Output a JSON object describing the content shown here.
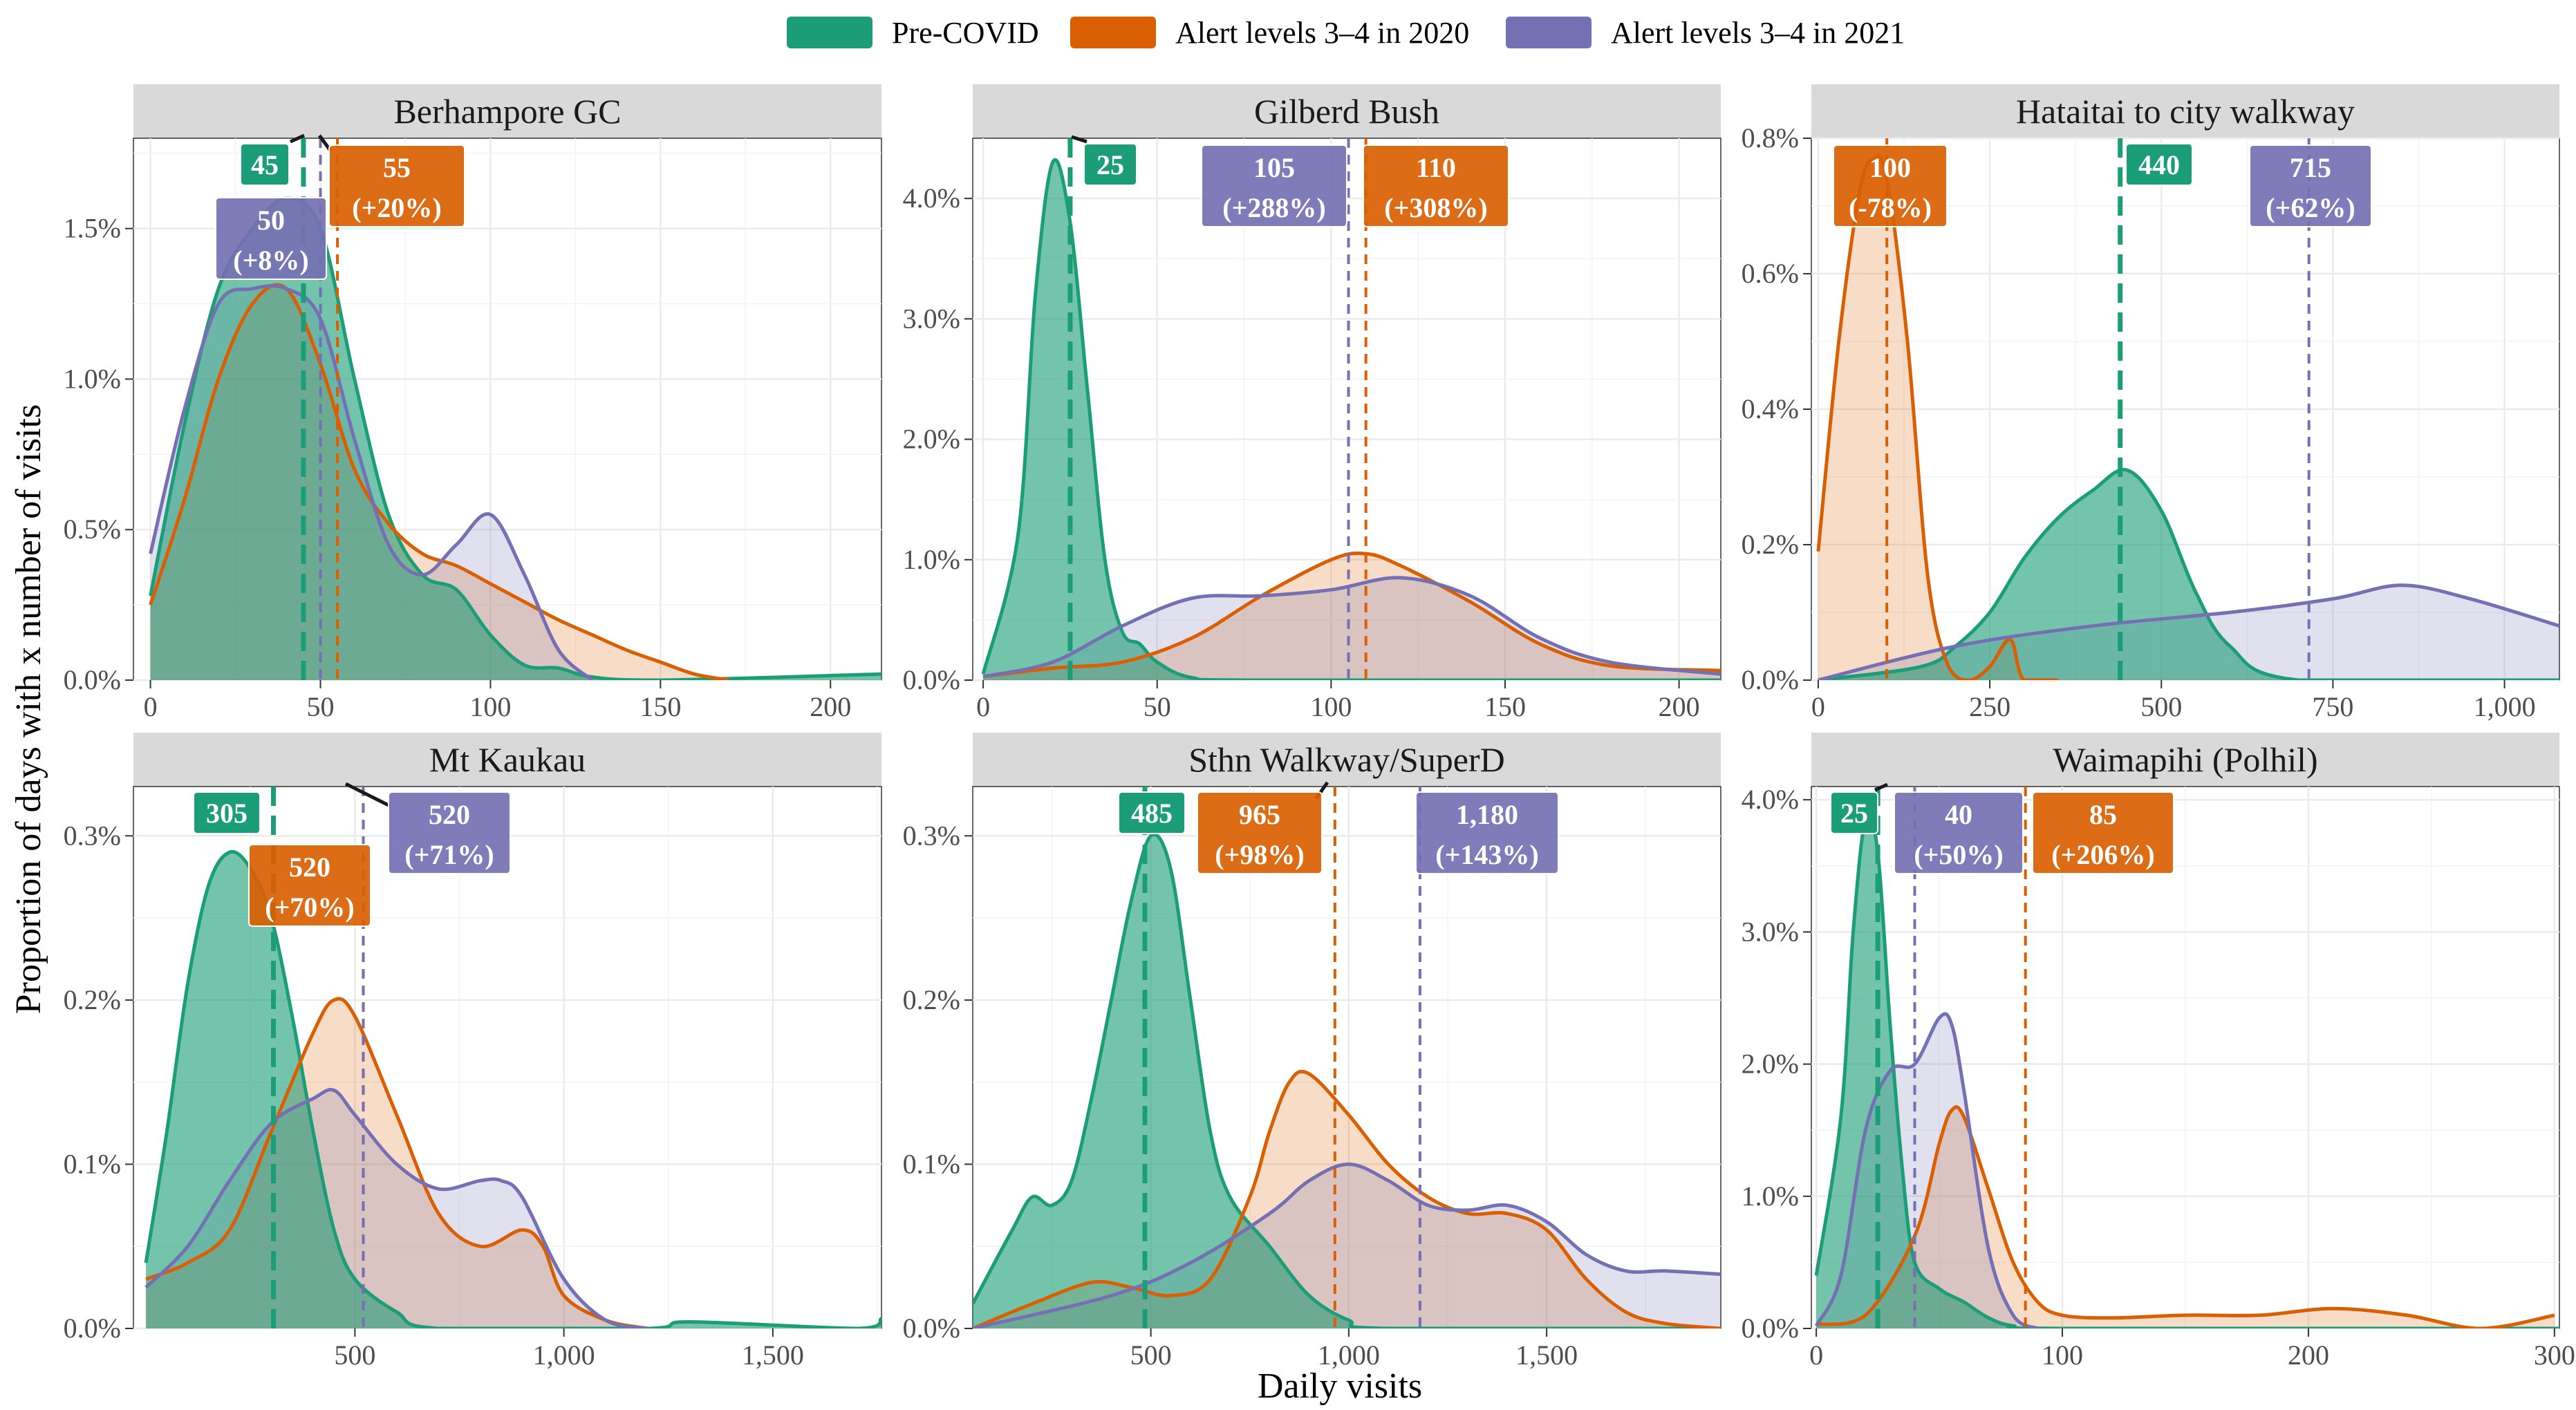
{
  "chart_data": {
    "type": "area",
    "xlabel": "Daily visits",
    "ylabel": "Proportion of days with x number of visits",
    "legend": {
      "placement": "top-center",
      "entries": [
        {
          "name": "Pre-COVID",
          "color": "#1b9e77"
        },
        {
          "name": "Alert levels 3–4 in 2020",
          "color": "#d95f02"
        },
        {
          "name": "Alert levels 3–4 in 2021",
          "color": "#7570b3"
        }
      ]
    },
    "panels": [
      {
        "title": "Berhampore GC",
        "xlim": [
          -5,
          215
        ],
        "ylim": [
          0,
          1.8
        ],
        "xticks": [
          0,
          50,
          100,
          150,
          200
        ],
        "xtick_labels": [
          "0",
          "50",
          "100",
          "150",
          "200"
        ],
        "yticks": [
          0,
          0.5,
          1.0,
          1.5
        ],
        "ytick_labels": [
          "0.0%",
          "0.5%",
          "1.0%",
          "1.5%"
        ],
        "series": [
          {
            "name": "Pre-COVID",
            "x": [
              0,
              10,
              20,
              30,
              40,
              50,
              60,
              70,
              80,
              90,
              100,
              110,
              120,
              130,
              150,
              215
            ],
            "y": [
              0.28,
              0.85,
              1.3,
              1.5,
              1.6,
              1.5,
              1.0,
              0.55,
              0.35,
              0.3,
              0.15,
              0.05,
              0.04,
              0.01,
              0.0,
              0.02
            ]
          },
          {
            "name": "Alert levels 3–4 in 2020",
            "x": [
              0,
              10,
              20,
              30,
              40,
              50,
              60,
              70,
              80,
              90,
              100,
              110,
              120,
              130,
              140,
              150,
              160,
              170
            ],
            "y": [
              0.25,
              0.6,
              1.0,
              1.25,
              1.3,
              1.05,
              0.7,
              0.52,
              0.42,
              0.38,
              0.32,
              0.26,
              0.2,
              0.15,
              0.1,
              0.06,
              0.02,
              0.0
            ]
          },
          {
            "name": "Alert levels 3–4 in 2021",
            "x": [
              0,
              10,
              20,
              30,
              40,
              50,
              60,
              70,
              80,
              90,
              100,
              110,
              120,
              130
            ],
            "y": [
              0.42,
              0.9,
              1.25,
              1.3,
              1.3,
              1.2,
              0.8,
              0.45,
              0.35,
              0.45,
              0.55,
              0.35,
              0.1,
              0.0
            ]
          }
        ],
        "annotations": [
          {
            "series": "Pre-COVID",
            "x": 45,
            "label": "45",
            "change": ""
          },
          {
            "series": "Alert levels 3–4 in 2021",
            "x": 50,
            "label": "50",
            "change": "(+8%)"
          },
          {
            "series": "Alert levels 3–4 in 2020",
            "x": 55,
            "label": "55",
            "change": "(+20%)"
          }
        ]
      },
      {
        "title": "Gilberd Bush",
        "xlim": [
          -3,
          212
        ],
        "ylim": [
          0,
          4.5
        ],
        "xticks": [
          0,
          50,
          100,
          150,
          200
        ],
        "xtick_labels": [
          "0",
          "50",
          "100",
          "150",
          "200"
        ],
        "yticks": [
          0,
          1.0,
          2.0,
          3.0,
          4.0
        ],
        "ytick_labels": [
          "0.0%",
          "1.0%",
          "2.0%",
          "3.0%",
          "4.0%"
        ],
        "series": [
          {
            "name": "Pre-COVID",
            "x": [
              0,
              10,
              15,
              20,
              25,
              30,
              35,
              40,
              45,
              50,
              60,
              80,
              212
            ],
            "y": [
              0.05,
              1.2,
              3.2,
              4.3,
              3.8,
              2.4,
              1.0,
              0.4,
              0.3,
              0.15,
              0.02,
              0.0,
              0.0
            ]
          },
          {
            "name": "Alert levels 3–4 in 2020",
            "x": [
              0,
              20,
              40,
              60,
              80,
              100,
              110,
              120,
              140,
              160,
              180,
              212
            ],
            "y": [
              0.03,
              0.1,
              0.15,
              0.35,
              0.7,
              1.0,
              1.05,
              0.95,
              0.65,
              0.3,
              0.12,
              0.08
            ]
          },
          {
            "name": "Alert levels 3–4 in 2021",
            "x": [
              0,
              20,
              40,
              60,
              80,
              100,
              120,
              140,
              160,
              180,
              212
            ],
            "y": [
              0.03,
              0.15,
              0.45,
              0.68,
              0.7,
              0.75,
              0.85,
              0.7,
              0.35,
              0.15,
              0.05
            ]
          }
        ],
        "annotations": [
          {
            "series": "Pre-COVID",
            "x": 25,
            "label": "25",
            "change": ""
          },
          {
            "series": "Alert levels 3–4 in 2021",
            "x": 105,
            "label": "105",
            "change": "(+288%)"
          },
          {
            "series": "Alert levels 3–4 in 2020",
            "x": 110,
            "label": "110",
            "change": "(+308%)"
          }
        ]
      },
      {
        "title": "Hataitai to city walkway",
        "xlim": [
          -10,
          1080
        ],
        "ylim": [
          0,
          0.8
        ],
        "xticks": [
          0,
          250,
          500,
          750,
          1000
        ],
        "xtick_labels": [
          "0",
          "250",
          "500",
          "750",
          "1,000"
        ],
        "yticks": [
          0,
          0.2,
          0.4,
          0.6,
          0.8
        ],
        "ytick_labels": [
          "0.0%",
          "0.2%",
          "0.4%",
          "0.6%",
          "0.8%"
        ],
        "series": [
          {
            "name": "Pre-COVID",
            "x": [
              0,
              150,
              200,
              250,
              300,
              350,
              400,
              450,
              500,
              550,
              600,
              700,
              1080
            ],
            "y": [
              0.0,
              0.02,
              0.05,
              0.1,
              0.18,
              0.24,
              0.28,
              0.31,
              0.25,
              0.13,
              0.05,
              0.0,
              0.0
            ]
          },
          {
            "name": "Alert levels 3–4 in 2020",
            "x": [
              0,
              30,
              60,
              80,
              100,
              130,
              160,
              190,
              220,
              250,
              280,
              300,
              350
            ],
            "y": [
              0.19,
              0.5,
              0.72,
              0.77,
              0.74,
              0.5,
              0.15,
              0.02,
              0.0,
              0.02,
              0.06,
              0.0,
              0.0
            ]
          },
          {
            "name": "Alert levels 3–4 in 2021",
            "x": [
              0,
              200,
              400,
              600,
              750,
              850,
              950,
              1080
            ],
            "y": [
              0.0,
              0.05,
              0.08,
              0.1,
              0.12,
              0.14,
              0.12,
              0.08
            ]
          }
        ],
        "annotations": [
          {
            "series": "Alert levels 3–4 in 2020",
            "x": 100,
            "label": "100",
            "change": "(-78%)"
          },
          {
            "series": "Pre-COVID",
            "x": 440,
            "label": "440",
            "change": ""
          },
          {
            "series": "Alert levels 3–4 in 2021",
            "x": 715,
            "label": "715",
            "change": "(+62%)"
          }
        ]
      },
      {
        "title": "Mt Kaukau",
        "xlim": [
          -30,
          1760
        ],
        "ylim": [
          0,
          0.33
        ],
        "xticks": [
          500,
          1000,
          1500
        ],
        "xtick_labels": [
          "500",
          "1,000",
          "1,500"
        ],
        "yticks": [
          0,
          0.1,
          0.2,
          0.3
        ],
        "ytick_labels": [
          "0.0%",
          "0.1%",
          "0.2%",
          "0.3%"
        ],
        "series": [
          {
            "name": "Pre-COVID",
            "x": [
              0,
              50,
              100,
              150,
              200,
              250,
              300,
              350,
              400,
              450,
              500,
              600,
              700,
              1200,
              1300,
              1700,
              1760
            ],
            "y": [
              0.04,
              0.12,
              0.21,
              0.27,
              0.29,
              0.28,
              0.25,
              0.19,
              0.12,
              0.06,
              0.03,
              0.01,
              0.0,
              0.0,
              0.004,
              0.0,
              0.006
            ]
          },
          {
            "name": "Alert levels 3–4 in 2020",
            "x": [
              0,
              100,
              200,
              300,
              400,
              450,
              500,
              600,
              700,
              800,
              900,
              950,
              1000,
              1100,
              1200
            ],
            "y": [
              0.03,
              0.04,
              0.06,
              0.12,
              0.18,
              0.2,
              0.19,
              0.13,
              0.07,
              0.05,
              0.06,
              0.05,
              0.02,
              0.005,
              0.0
            ]
          },
          {
            "name": "Alert levels 3–4 in 2021",
            "x": [
              0,
              100,
              200,
              300,
              400,
              450,
              500,
              600,
              700,
              800,
              850,
              900,
              1000,
              1100,
              1200
            ],
            "y": [
              0.025,
              0.05,
              0.09,
              0.125,
              0.14,
              0.145,
              0.13,
              0.1,
              0.085,
              0.09,
              0.09,
              0.08,
              0.03,
              0.005,
              0.0
            ]
          }
        ],
        "annotations": [
          {
            "series": "Pre-COVID",
            "x": 305,
            "label": "305",
            "change": ""
          },
          {
            "series": "Alert levels 3–4 in 2020",
            "x": 520,
            "label": "520",
            "change": "(+70%)"
          },
          {
            "series": "Alert levels 3–4 in 2021",
            "x": 520,
            "label": "520",
            "change": "(+71%)"
          }
        ]
      },
      {
        "title": "Sthn Walkway/SuperD",
        "xlim": [
          50,
          1940
        ],
        "ylim": [
          0,
          0.33
        ],
        "xticks": [
          500,
          1000,
          1500
        ],
        "xtick_labels": [
          "500",
          "1,000",
          "1,500"
        ],
        "yticks": [
          0,
          0.1,
          0.2,
          0.3
        ],
        "ytick_labels": [
          "0.0%",
          "0.1%",
          "0.2%",
          "0.3%"
        ],
        "series": [
          {
            "name": "Pre-COVID",
            "x": [
              50,
              150,
              200,
              250,
              300,
              350,
              400,
              450,
              500,
              550,
              600,
              650,
              700,
              800,
              900,
              1000,
              1100,
              1940
            ],
            "y": [
              0.015,
              0.06,
              0.08,
              0.075,
              0.09,
              0.14,
              0.2,
              0.26,
              0.3,
              0.28,
              0.2,
              0.12,
              0.08,
              0.05,
              0.02,
              0.005,
              0.0,
              0.0
            ]
          },
          {
            "name": "Alert levels 3–4 in 2020",
            "x": [
              50,
              200,
              350,
              450,
              550,
              650,
              750,
              800,
              850,
              900,
              1000,
              1100,
              1200,
              1300,
              1400,
              1500,
              1600,
              1700,
              1800,
              1940
            ],
            "y": [
              0.0,
              0.015,
              0.028,
              0.025,
              0.02,
              0.03,
              0.08,
              0.12,
              0.15,
              0.155,
              0.13,
              0.1,
              0.08,
              0.07,
              0.07,
              0.06,
              0.03,
              0.01,
              0.003,
              0.0
            ]
          },
          {
            "name": "Alert levels 3–4 in 2021",
            "x": [
              50,
              400,
              600,
              800,
              900,
              1000,
              1100,
              1200,
              1300,
              1400,
              1500,
              1600,
              1700,
              1800,
              1940
            ],
            "y": [
              0.0,
              0.02,
              0.04,
              0.07,
              0.09,
              0.1,
              0.09,
              0.075,
              0.072,
              0.075,
              0.065,
              0.045,
              0.035,
              0.035,
              0.033
            ]
          }
        ],
        "annotations": [
          {
            "series": "Pre-COVID",
            "x": 485,
            "label": "485",
            "change": ""
          },
          {
            "series": "Alert levels 3–4 in 2020",
            "x": 965,
            "label": "965",
            "change": "(+98%)"
          },
          {
            "series": "Alert levels 3–4 in 2021",
            "x": 1180,
            "label": "1,180",
            "change": "(+143%)"
          }
        ]
      },
      {
        "title": "Waimapihi (Polhil)",
        "xlim": [
          -2,
          302
        ],
        "ylim": [
          0,
          4.1
        ],
        "xticks": [
          0,
          100,
          200,
          300
        ],
        "xtick_labels": [
          "0",
          "100",
          "200",
          "300"
        ],
        "yticks": [
          0,
          1.0,
          2.0,
          3.0,
          4.0
        ],
        "ytick_labels": [
          "0.0%",
          "1.0%",
          "2.0%",
          "3.0%",
          "4.0%"
        ],
        "series": [
          {
            "name": "Pre-COVID",
            "x": [
              0,
              10,
              15,
              20,
              25,
              30,
              35,
              40,
              50,
              60,
              70,
              80,
              100,
              302
            ],
            "y": [
              0.4,
              1.6,
              3.0,
              3.85,
              3.6,
              2.3,
              1.2,
              0.5,
              0.3,
              0.2,
              0.08,
              0.02,
              0.0,
              0.0
            ]
          },
          {
            "name": "Alert levels 3–4 in 2020",
            "x": [
              0,
              20,
              40,
              50,
              55,
              60,
              70,
              80,
              90,
              100,
              120,
              150,
              180,
              210,
              240,
              270,
              300
            ],
            "y": [
              0.03,
              0.1,
              0.7,
              1.4,
              1.65,
              1.6,
              1.05,
              0.5,
              0.2,
              0.1,
              0.08,
              0.1,
              0.1,
              0.15,
              0.1,
              0.0,
              0.1
            ]
          },
          {
            "name": "Alert levels 3–4 in 2021",
            "x": [
              0,
              10,
              20,
              30,
              40,
              50,
              55,
              60,
              70,
              80,
              90
            ],
            "y": [
              0.02,
              0.4,
              1.5,
              1.95,
              2.0,
              2.35,
              2.3,
              1.8,
              0.6,
              0.1,
              0.0
            ]
          }
        ],
        "annotations": [
          {
            "series": "Pre-COVID",
            "x": 25,
            "label": "25",
            "change": ""
          },
          {
            "series": "Alert levels 3–4 in 2021",
            "x": 40,
            "label": "40",
            "change": "(+50%)"
          },
          {
            "series": "Alert levels 3–4 in 2020",
            "x": 85,
            "label": "85",
            "change": "(+206%)"
          }
        ]
      }
    ]
  }
}
